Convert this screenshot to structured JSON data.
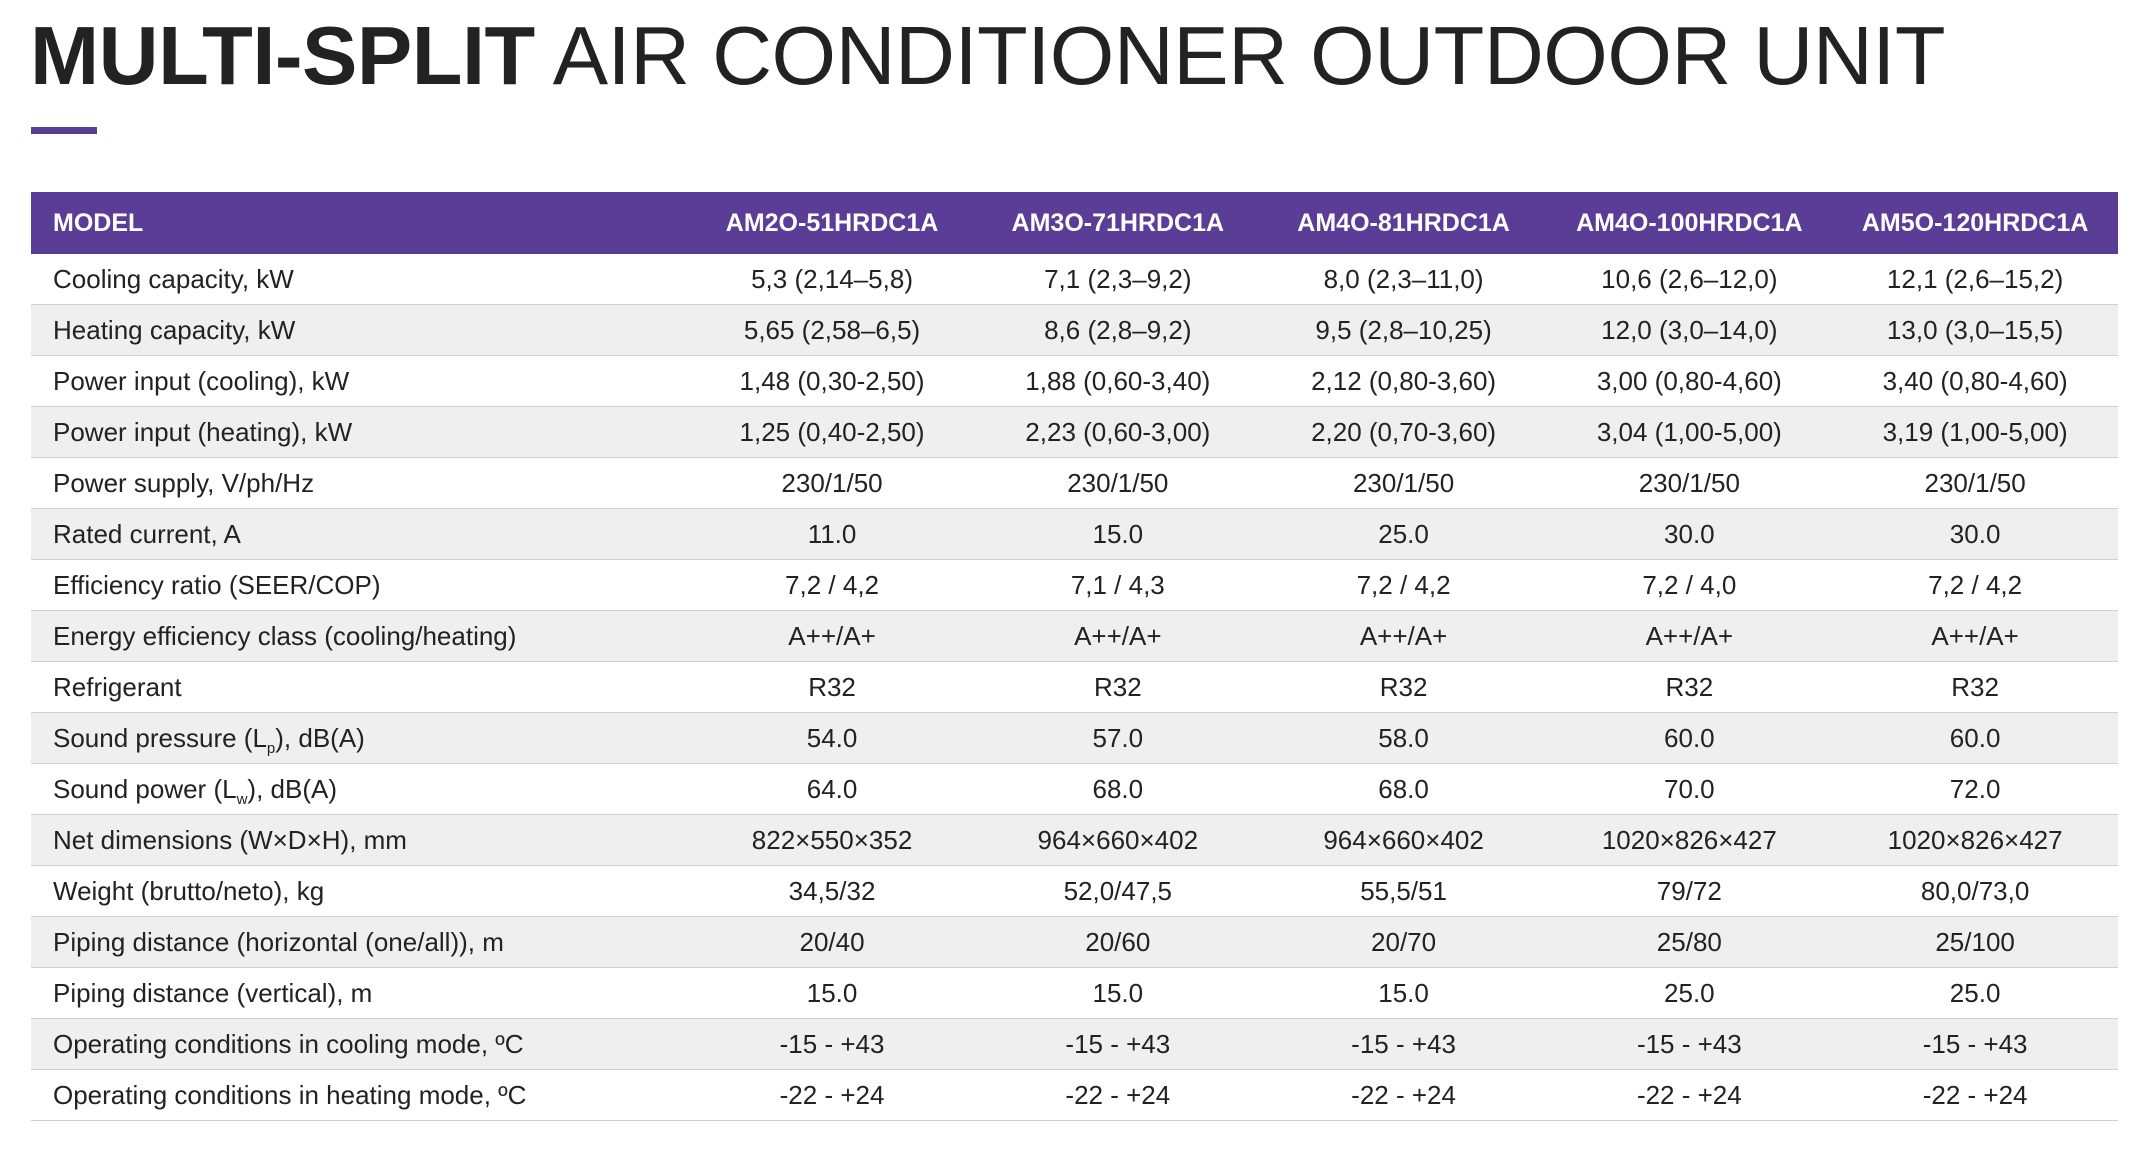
{
  "title": {
    "bold": "MULTI-SPLIT",
    "regular": "AIR CONDITIONER OUTDOOR UNIT"
  },
  "colors": {
    "accent": "#5b3c97",
    "text": "#222222",
    "row_alt": "#efefef"
  },
  "table": {
    "header": {
      "label": "MODEL",
      "models": [
        "AM2O-51HRDC1A",
        "AM3O-71HRDC1A",
        "AM4O-81HRDC1A",
        "AM4O-100HRDC1A",
        "AM5O-120HRDC1A"
      ]
    },
    "rows": [
      {
        "label": "Cooling capacity, kW",
        "values": [
          "5,3 (2,14–5,8)",
          "7,1 (2,3–9,2)",
          "8,0 (2,3–11,0)",
          "10,6 (2,6–12,0)",
          "12,1 (2,6–15,2)"
        ]
      },
      {
        "label": "Heating capacity, kW",
        "values": [
          "5,65 (2,58–6,5)",
          "8,6 (2,8–9,2)",
          "9,5 (2,8–10,25)",
          "12,0 (3,0–14,0)",
          "13,0 (3,0–15,5)"
        ]
      },
      {
        "label": "Power input (cooling), kW",
        "values": [
          "1,48 (0,30-2,50)",
          "1,88 (0,60-3,40)",
          "2,12 (0,80-3,60)",
          "3,00 (0,80-4,60)",
          "3,40 (0,80-4,60)"
        ]
      },
      {
        "label": "Power input (heating), kW",
        "values": [
          "1,25 (0,40-2,50)",
          "2,23 (0,60-3,00)",
          "2,20 (0,70-3,60)",
          "3,04 (1,00-5,00)",
          "3,19 (1,00-5,00)"
        ]
      },
      {
        "label": "Power supply, V/ph/Hz",
        "values": [
          "230/1/50",
          "230/1/50",
          "230/1/50",
          "230/1/50",
          "230/1/50"
        ]
      },
      {
        "label": "Rated current, A",
        "values": [
          "11.0",
          "15.0",
          "25.0",
          "30.0",
          "30.0"
        ]
      },
      {
        "label": "Efficiency ratio (SEER/COP)",
        "values": [
          "7,2 / 4,2",
          "7,1 / 4,3",
          "7,2 / 4,2",
          "7,2 / 4,0",
          "7,2 / 4,2"
        ]
      },
      {
        "label": "Energy efficiency class (cooling/heating)",
        "values": [
          "A++/A+",
          "A++/A+",
          "A++/A+",
          "A++/A+",
          "A++/A+"
        ]
      },
      {
        "label": "Refrigerant",
        "values": [
          "R32",
          "R32",
          "R32",
          "R32",
          "R32"
        ]
      },
      {
        "label_pre": "Sound pressure (L",
        "label_sub": "p",
        "label_post": "), dB(A)",
        "values": [
          "54.0",
          "57.0",
          "58.0",
          "60.0",
          "60.0"
        ]
      },
      {
        "label_pre": "Sound power (L",
        "label_sub": "w",
        "label_post": "), dB(A)",
        "values": [
          "64.0",
          "68.0",
          "68.0",
          "70.0",
          "72.0"
        ]
      },
      {
        "label": "Net dimensions (W×D×H), mm",
        "values": [
          "822×550×352",
          "964×660×402",
          "964×660×402",
          "1020×826×427",
          "1020×826×427"
        ]
      },
      {
        "label": "Weight (brutto/neto), kg",
        "values": [
          "34,5/32",
          "52,0/47,5",
          "55,5/51",
          "79/72",
          "80,0/73,0"
        ]
      },
      {
        "label": "Piping distance (horizontal (one/all)), m",
        "values": [
          "20/40",
          "20/60",
          "20/70",
          "25/80",
          "25/100"
        ]
      },
      {
        "label": "Piping distance (vertical), m",
        "values": [
          "15.0",
          "15.0",
          "15.0",
          "25.0",
          "25.0"
        ]
      },
      {
        "label": "Operating conditions in cooling mode, ºC",
        "values": [
          "-15 - +43",
          "-15 - +43",
          "-15 - +43",
          "-15 - +43",
          "-15 - +43"
        ]
      },
      {
        "label": "Operating conditions in heating mode, ºC",
        "values": [
          "-22 - +24",
          "-22 - +24",
          "-22 - +24",
          "-22 - +24",
          "-22 - +24"
        ]
      }
    ]
  }
}
